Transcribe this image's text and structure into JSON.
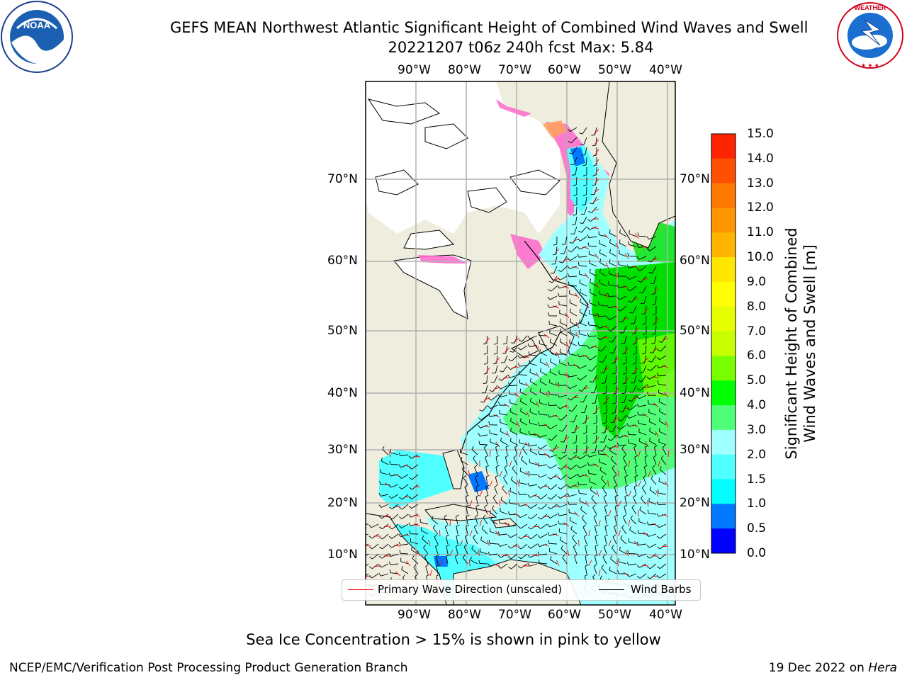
{
  "header": {
    "title": "GEFS MEAN Northwest Atlantic Significant Height of Combined Wind Waves and Swell",
    "subtitle": "20221207 t06z 240h fcst   Max: 5.84"
  },
  "logos": {
    "left": "noaa-logo",
    "right": "national-weather-service-logo",
    "left_text": "NOAA",
    "right_text": "NATIONAL WEATHER SERVICE"
  },
  "map": {
    "lon_labels": [
      "90°W",
      "80°W",
      "70°W",
      "60°W",
      "50°W",
      "40°W"
    ],
    "lat_labels": [
      "70°N",
      "60°N",
      "50°N",
      "40°N",
      "30°N",
      "20°N",
      "10°N"
    ],
    "colors": {
      "land": "#efedde",
      "ice": "#ffffff",
      "grid": "#b0b0b0",
      "wave_arrow": "#ff0000",
      "barb": "#000000"
    }
  },
  "legend": {
    "primary_wave_label": "Primary Wave Direction (unscaled)",
    "wind_barbs_label": "Wind Barbs"
  },
  "colorbar": {
    "label_line1": "Significant Height of Combined",
    "label_line2": "Wind Waves and Swell [m]",
    "ticks": [
      "15.0",
      "14.0",
      "13.0",
      "12.0",
      "11.0",
      "10.0",
      "9.0",
      "8.0",
      "7.0",
      "6.0",
      "5.0",
      "4.0",
      "3.0",
      "2.0",
      "1.5",
      "1.0",
      "0.5",
      "0.0"
    ],
    "colors": [
      "#ff0000",
      "#ff2400",
      "#ff5000",
      "#ff7800",
      "#ff9600",
      "#ffb400",
      "#ffe600",
      "#ffff00",
      "#e6ff00",
      "#c8ff00",
      "#78ff00",
      "#00ff00",
      "#50ff78",
      "#a0ffff",
      "#50ffff",
      "#00ffff",
      "#0078ff",
      "#0000ff"
    ]
  },
  "note": "Sea Ice Concentration > 15% is shown in pink to yellow",
  "footer": {
    "left": "NCEP/EMC/Verification Post Processing Product Generation Branch",
    "right_date": "19 Dec 2022 on ",
    "right_host": "Hera"
  }
}
